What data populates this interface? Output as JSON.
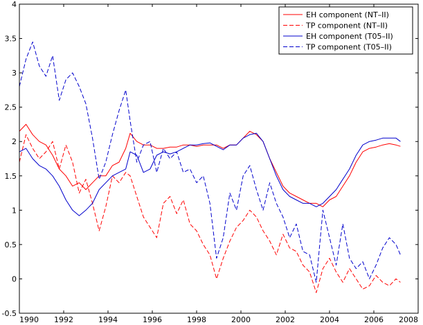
{
  "chart_data": {
    "type": "line",
    "title": "",
    "xlabel": "",
    "ylabel": "",
    "xlim": [
      1990,
      2008
    ],
    "ylim": [
      -0.5,
      4
    ],
    "xticks": [
      "1990",
      "1992",
      "1994",
      "1996",
      "1998",
      "2000",
      "2002",
      "2004",
      "2006",
      "2008"
    ],
    "yticks": [
      "-0.5",
      "0",
      "0.5",
      "1",
      "1.5",
      "2",
      "2.5",
      "3",
      "3.5",
      "4"
    ],
    "grid": false,
    "legend_position": "top-right",
    "series": [
      {
        "name": "EH component (NT–II)",
        "color": "#ff0000",
        "style": "solid",
        "x": [
          1990.0,
          1990.3,
          1990.6,
          1990.9,
          1991.2,
          1991.5,
          1991.8,
          1992.1,
          1992.4,
          1992.7,
          1993.0,
          1993.3,
          1993.6,
          1993.9,
          1994.2,
          1994.5,
          1994.8,
          1995.0,
          1995.3,
          1995.6,
          1995.9,
          1996.2,
          1996.5,
          1996.8,
          1997.1,
          1997.4,
          1997.7,
          1998.0,
          1998.3,
          1998.6,
          1998.9,
          1999.2,
          1999.5,
          1999.8,
          2000.1,
          2000.4,
          2000.7,
          2001.0,
          2001.3,
          2001.6,
          2001.9,
          2002.2,
          2002.5,
          2002.8,
          2003.1,
          2003.4,
          2003.7,
          2004.0,
          2004.3,
          2004.6,
          2004.9,
          2005.2,
          2005.5,
          2005.8,
          2006.1,
          2006.4,
          2006.7,
          2007.0,
          2007.2
        ],
        "y": [
          2.15,
          2.25,
          2.1,
          2.0,
          1.95,
          1.8,
          1.6,
          1.5,
          1.35,
          1.4,
          1.3,
          1.4,
          1.5,
          1.5,
          1.65,
          1.7,
          1.9,
          2.12,
          2.0,
          1.95,
          1.95,
          1.9,
          1.9,
          1.92,
          1.92,
          1.95,
          1.95,
          1.93,
          1.95,
          1.95,
          1.95,
          1.9,
          1.95,
          1.95,
          2.05,
          2.15,
          2.1,
          2.0,
          1.75,
          1.55,
          1.35,
          1.25,
          1.2,
          1.15,
          1.1,
          1.1,
          1.05,
          1.15,
          1.2,
          1.35,
          1.5,
          1.7,
          1.85,
          1.9,
          1.92,
          1.95,
          1.97,
          1.95,
          1.93
        ]
      },
      {
        "name": "TP component (NT–II)",
        "color": "#ff0000",
        "style": "dashed",
        "x": [
          1990.0,
          1990.3,
          1990.6,
          1990.9,
          1991.2,
          1991.5,
          1991.8,
          1992.1,
          1992.4,
          1992.7,
          1993.0,
          1993.3,
          1993.6,
          1993.9,
          1994.2,
          1994.5,
          1994.8,
          1995.0,
          1995.3,
          1995.6,
          1995.9,
          1996.2,
          1996.5,
          1996.8,
          1997.1,
          1997.4,
          1997.7,
          1998.0,
          1998.3,
          1998.6,
          1998.9,
          1999.2,
          1999.5,
          1999.8,
          2000.1,
          2000.4,
          2000.7,
          2001.0,
          2001.3,
          2001.6,
          2001.9,
          2002.2,
          2002.5,
          2002.8,
          2003.1,
          2003.4,
          2003.7,
          2004.0,
          2004.3,
          2004.6,
          2004.9,
          2005.2,
          2005.5,
          2005.8,
          2006.1,
          2006.4,
          2006.7,
          2007.0,
          2007.2
        ],
        "y": [
          1.7,
          2.1,
          1.9,
          1.75,
          1.85,
          2.0,
          1.6,
          1.95,
          1.7,
          1.25,
          1.45,
          1.1,
          0.7,
          1.05,
          1.5,
          1.4,
          1.55,
          1.5,
          1.2,
          0.9,
          0.75,
          0.6,
          1.1,
          1.2,
          0.95,
          1.15,
          0.8,
          0.7,
          0.5,
          0.35,
          0.0,
          0.3,
          0.55,
          0.75,
          0.85,
          1.0,
          0.9,
          0.7,
          0.55,
          0.35,
          0.65,
          0.45,
          0.4,
          0.2,
          0.1,
          -0.2,
          0.15,
          0.3,
          0.1,
          -0.05,
          0.15,
          0.0,
          -0.15,
          -0.1,
          0.05,
          -0.05,
          -0.1,
          0.0,
          -0.05
        ]
      },
      {
        "name": "EH component (T05–II)",
        "color": "#0000cc",
        "style": "solid",
        "x": [
          1990.0,
          1990.3,
          1990.6,
          1990.9,
          1991.2,
          1991.5,
          1991.8,
          1992.1,
          1992.4,
          1992.7,
          1993.0,
          1993.3,
          1993.6,
          1993.9,
          1994.2,
          1994.5,
          1994.8,
          1995.0,
          1995.3,
          1995.6,
          1995.9,
          1996.2,
          1996.5,
          1996.8,
          1997.1,
          1997.4,
          1997.7,
          1998.0,
          1998.3,
          1998.6,
          1998.9,
          1999.2,
          1999.5,
          1999.8,
          2000.1,
          2000.4,
          2000.7,
          2001.0,
          2001.3,
          2001.6,
          2001.9,
          2002.2,
          2002.5,
          2002.8,
          2003.1,
          2003.4,
          2003.7,
          2004.0,
          2004.3,
          2004.6,
          2004.9,
          2005.2,
          2005.5,
          2005.8,
          2006.1,
          2006.4,
          2006.7,
          2007.0,
          2007.2
        ],
        "y": [
          1.85,
          1.9,
          1.75,
          1.65,
          1.6,
          1.5,
          1.35,
          1.15,
          1.0,
          0.92,
          1.0,
          1.1,
          1.3,
          1.4,
          1.5,
          1.55,
          1.6,
          1.85,
          1.8,
          1.55,
          1.6,
          1.8,
          1.85,
          1.82,
          1.85,
          1.9,
          1.95,
          1.95,
          1.97,
          1.98,
          1.93,
          1.88,
          1.95,
          1.95,
          2.05,
          2.1,
          2.12,
          2.0,
          1.75,
          1.5,
          1.3,
          1.2,
          1.15,
          1.1,
          1.1,
          1.05,
          1.1,
          1.2,
          1.3,
          1.45,
          1.6,
          1.8,
          1.95,
          2.0,
          2.02,
          2.05,
          2.05,
          2.05,
          2.0
        ]
      },
      {
        "name": "TP component (T05–II)",
        "color": "#0000cc",
        "style": "dashed",
        "x": [
          1990.0,
          1990.3,
          1990.6,
          1990.9,
          1991.2,
          1991.5,
          1991.8,
          1992.1,
          1992.4,
          1992.7,
          1993.0,
          1993.3,
          1993.6,
          1993.9,
          1994.2,
          1994.5,
          1994.8,
          1995.0,
          1995.3,
          1995.6,
          1995.9,
          1996.2,
          1996.5,
          1996.8,
          1997.1,
          1997.4,
          1997.7,
          1998.0,
          1998.3,
          1998.6,
          1998.9,
          1999.2,
          1999.5,
          1999.8,
          2000.1,
          2000.4,
          2000.7,
          2001.0,
          2001.3,
          2001.6,
          2001.9,
          2002.2,
          2002.5,
          2002.8,
          2003.1,
          2003.4,
          2003.7,
          2004.0,
          2004.3,
          2004.6,
          2004.9,
          2005.2,
          2005.5,
          2005.8,
          2006.1,
          2006.4,
          2006.7,
          2007.0,
          2007.2
        ],
        "y": [
          2.8,
          3.2,
          3.45,
          3.1,
          2.95,
          3.25,
          2.6,
          2.9,
          3.0,
          2.8,
          2.55,
          2.05,
          1.45,
          1.7,
          2.1,
          2.45,
          2.75,
          2.3,
          1.7,
          1.95,
          2.0,
          1.55,
          1.9,
          1.75,
          1.85,
          1.55,
          1.6,
          1.4,
          1.5,
          1.1,
          0.3,
          0.6,
          1.25,
          1.0,
          1.5,
          1.65,
          1.3,
          1.0,
          1.4,
          1.1,
          0.9,
          0.6,
          0.8,
          0.4,
          0.35,
          -0.05,
          1.0,
          0.6,
          0.2,
          0.8,
          0.3,
          0.15,
          0.25,
          0.0,
          0.2,
          0.45,
          0.6,
          0.5,
          0.35
        ]
      }
    ]
  }
}
